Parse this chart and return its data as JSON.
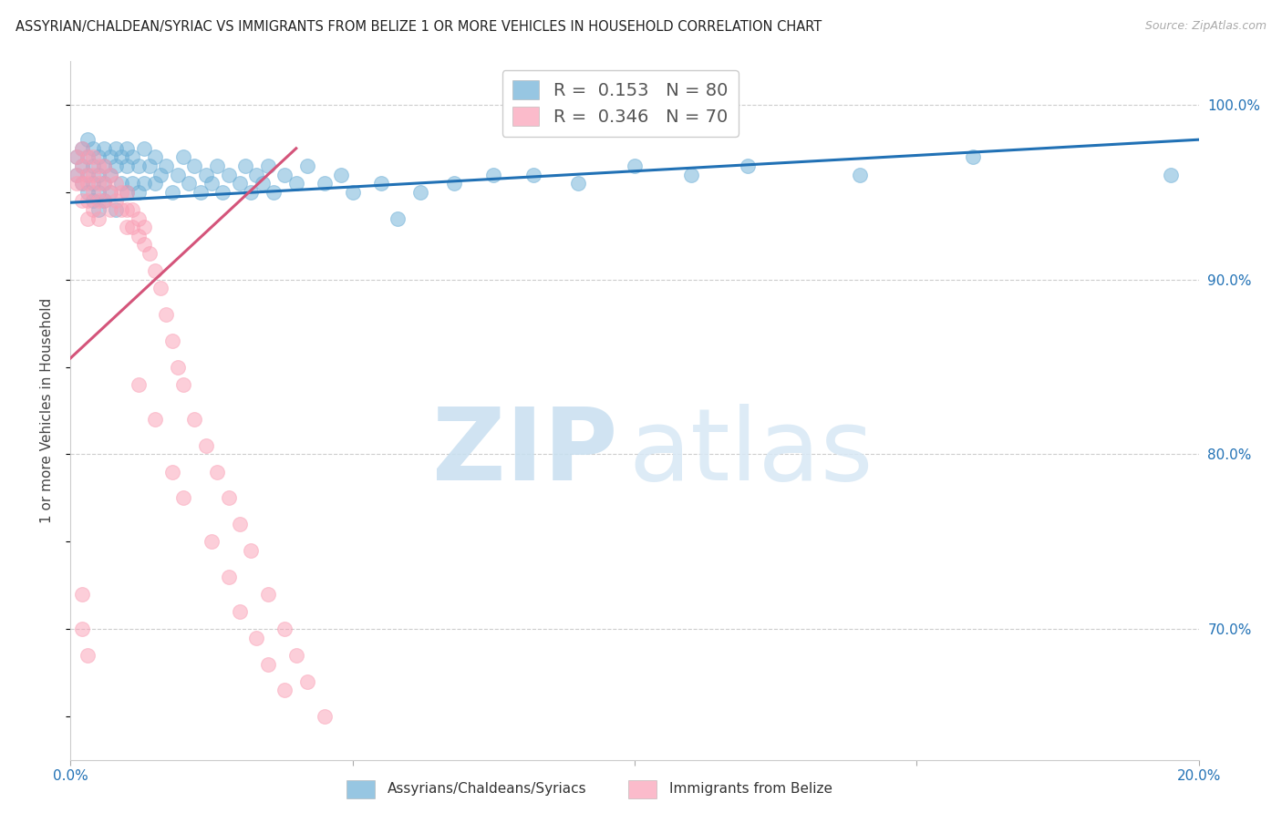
{
  "title": "ASSYRIAN/CHALDEAN/SYRIAC VS IMMIGRANTS FROM BELIZE 1 OR MORE VEHICLES IN HOUSEHOLD CORRELATION CHART",
  "source": "Source: ZipAtlas.com",
  "ylabel": "1 or more Vehicles in Household",
  "ytick_labels": [
    "100.0%",
    "90.0%",
    "80.0%",
    "70.0%"
  ],
  "ytick_values": [
    1.0,
    0.9,
    0.8,
    0.7
  ],
  "xmin": 0.0,
  "xmax": 0.2,
  "ymin": 0.625,
  "ymax": 1.025,
  "legend_blue_r": "0.153",
  "legend_blue_n": "80",
  "legend_pink_r": "0.346",
  "legend_pink_n": "70",
  "blue_color": "#6baed6",
  "pink_color": "#fa9fb5",
  "blue_line_color": "#2171b5",
  "pink_line_color": "#d4547a",
  "blue_scatter_x": [
    0.001,
    0.001,
    0.002,
    0.002,
    0.002,
    0.003,
    0.003,
    0.003,
    0.003,
    0.004,
    0.004,
    0.004,
    0.004,
    0.005,
    0.005,
    0.005,
    0.005,
    0.006,
    0.006,
    0.006,
    0.006,
    0.007,
    0.007,
    0.007,
    0.008,
    0.008,
    0.008,
    0.009,
    0.009,
    0.01,
    0.01,
    0.01,
    0.011,
    0.011,
    0.012,
    0.012,
    0.013,
    0.013,
    0.014,
    0.015,
    0.015,
    0.016,
    0.017,
    0.018,
    0.019,
    0.02,
    0.021,
    0.022,
    0.023,
    0.024,
    0.025,
    0.026,
    0.027,
    0.028,
    0.03,
    0.031,
    0.032,
    0.033,
    0.034,
    0.035,
    0.036,
    0.038,
    0.04,
    0.042,
    0.045,
    0.048,
    0.05,
    0.055,
    0.058,
    0.062,
    0.068,
    0.075,
    0.082,
    0.09,
    0.1,
    0.11,
    0.12,
    0.14,
    0.16,
    0.195
  ],
  "blue_scatter_y": [
    0.97,
    0.96,
    0.975,
    0.965,
    0.955,
    0.98,
    0.97,
    0.96,
    0.95,
    0.975,
    0.965,
    0.955,
    0.945,
    0.97,
    0.96,
    0.95,
    0.94,
    0.975,
    0.965,
    0.955,
    0.945,
    0.97,
    0.96,
    0.95,
    0.975,
    0.965,
    0.94,
    0.97,
    0.955,
    0.975,
    0.965,
    0.95,
    0.97,
    0.955,
    0.965,
    0.95,
    0.975,
    0.955,
    0.965,
    0.97,
    0.955,
    0.96,
    0.965,
    0.95,
    0.96,
    0.97,
    0.955,
    0.965,
    0.95,
    0.96,
    0.955,
    0.965,
    0.95,
    0.96,
    0.955,
    0.965,
    0.95,
    0.96,
    0.955,
    0.965,
    0.95,
    0.96,
    0.955,
    0.965,
    0.955,
    0.96,
    0.95,
    0.955,
    0.935,
    0.95,
    0.955,
    0.96,
    0.96,
    0.955,
    0.965,
    0.96,
    0.965,
    0.96,
    0.97,
    0.96
  ],
  "pink_scatter_x": [
    0.001,
    0.001,
    0.001,
    0.002,
    0.002,
    0.002,
    0.002,
    0.003,
    0.003,
    0.003,
    0.003,
    0.003,
    0.004,
    0.004,
    0.004,
    0.004,
    0.005,
    0.005,
    0.005,
    0.005,
    0.006,
    0.006,
    0.006,
    0.007,
    0.007,
    0.007,
    0.008,
    0.008,
    0.009,
    0.009,
    0.01,
    0.01,
    0.01,
    0.011,
    0.011,
    0.012,
    0.012,
    0.013,
    0.013,
    0.014,
    0.015,
    0.016,
    0.017,
    0.018,
    0.019,
    0.02,
    0.022,
    0.024,
    0.026,
    0.028,
    0.03,
    0.032,
    0.035,
    0.038,
    0.04,
    0.042,
    0.045,
    0.012,
    0.015,
    0.018,
    0.02,
    0.025,
    0.028,
    0.03,
    0.033,
    0.035,
    0.038,
    0.002,
    0.002,
    0.003
  ],
  "pink_scatter_y": [
    0.97,
    0.96,
    0.955,
    0.975,
    0.965,
    0.955,
    0.945,
    0.97,
    0.96,
    0.955,
    0.945,
    0.935,
    0.97,
    0.96,
    0.95,
    0.94,
    0.965,
    0.955,
    0.945,
    0.935,
    0.965,
    0.955,
    0.945,
    0.96,
    0.95,
    0.94,
    0.955,
    0.945,
    0.95,
    0.94,
    0.95,
    0.94,
    0.93,
    0.94,
    0.93,
    0.935,
    0.925,
    0.93,
    0.92,
    0.915,
    0.905,
    0.895,
    0.88,
    0.865,
    0.85,
    0.84,
    0.82,
    0.805,
    0.79,
    0.775,
    0.76,
    0.745,
    0.72,
    0.7,
    0.685,
    0.67,
    0.65,
    0.84,
    0.82,
    0.79,
    0.775,
    0.75,
    0.73,
    0.71,
    0.695,
    0.68,
    0.665,
    0.72,
    0.7,
    0.685
  ],
  "blue_line_x": [
    0.0,
    0.2
  ],
  "blue_line_y": [
    0.944,
    0.98
  ],
  "pink_line_x": [
    0.0,
    0.04
  ],
  "pink_line_y": [
    0.855,
    0.975
  ]
}
